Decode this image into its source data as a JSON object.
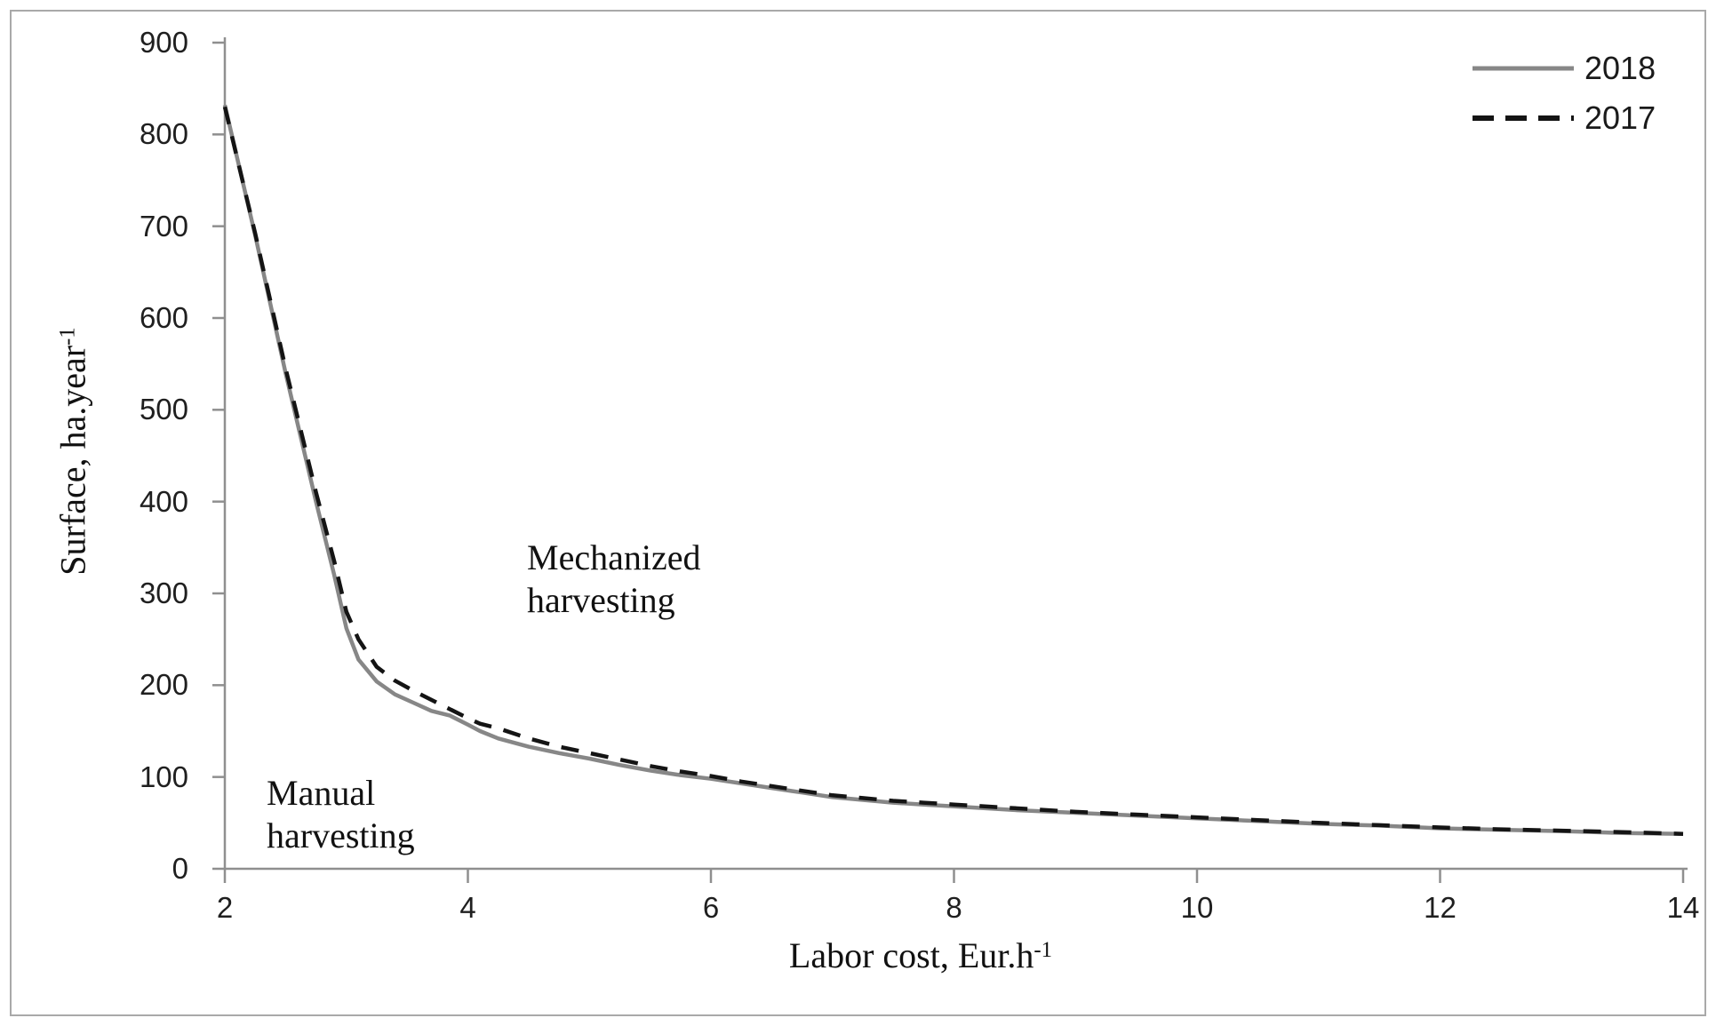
{
  "figure": {
    "border_color": "#a9a9a9",
    "background_color": "#ffffff"
  },
  "chart_data": {
    "type": "line",
    "title": "",
    "xlabel_base": "Labor cost, Eur.h",
    "xlabel_sup": "-1",
    "ylabel_base": "Surface, ha.year",
    "ylabel_sup": "-1",
    "xlim": [
      2,
      14
    ],
    "ylim": [
      0,
      900
    ],
    "xticks": [
      2,
      4,
      6,
      8,
      10,
      12,
      14
    ],
    "yticks": [
      0,
      100,
      200,
      300,
      400,
      500,
      600,
      700,
      800,
      900
    ],
    "grid": false,
    "legend_position": "top-right",
    "axis_color": "#8f8f8f",
    "tick_label_color": "#1f1f1f",
    "series": [
      {
        "name": "2018",
        "style": "solid",
        "color": "#878787",
        "points": [
          [
            2,
            832
          ],
          [
            2.25,
            690
          ],
          [
            2.5,
            540
          ],
          [
            2.75,
            400
          ],
          [
            2.9,
            320
          ],
          [
            3,
            262
          ],
          [
            3.1,
            228
          ],
          [
            3.25,
            204
          ],
          [
            3.4,
            190
          ],
          [
            3.55,
            181
          ],
          [
            3.7,
            172
          ],
          [
            3.85,
            167
          ],
          [
            4,
            157
          ],
          [
            4.1,
            150
          ],
          [
            4.25,
            142
          ],
          [
            4.5,
            133
          ],
          [
            4.75,
            126
          ],
          [
            5,
            120
          ],
          [
            5.25,
            113
          ],
          [
            5.5,
            107
          ],
          [
            5.75,
            102
          ],
          [
            6,
            98
          ],
          [
            6.25,
            93
          ],
          [
            6.5,
            88
          ],
          [
            6.75,
            83
          ],
          [
            7,
            78
          ],
          [
            7.25,
            75
          ],
          [
            7.5,
            72
          ],
          [
            7.75,
            70
          ],
          [
            8,
            68
          ],
          [
            8.5,
            64
          ],
          [
            9,
            61
          ],
          [
            9.5,
            58
          ],
          [
            10,
            55
          ],
          [
            10.5,
            52
          ],
          [
            11,
            49
          ],
          [
            11.5,
            47
          ],
          [
            12,
            44
          ],
          [
            12.5,
            42.5
          ],
          [
            13,
            41
          ],
          [
            13.5,
            39
          ],
          [
            14,
            38
          ]
        ]
      },
      {
        "name": "2017",
        "style": "dashed",
        "color": "#141414",
        "points": [
          [
            2,
            830
          ],
          [
            2.25,
            692
          ],
          [
            2.5,
            545
          ],
          [
            2.75,
            410
          ],
          [
            2.9,
            335
          ],
          [
            3,
            280
          ],
          [
            3.1,
            250
          ],
          [
            3.25,
            220
          ],
          [
            3.4,
            205
          ],
          [
            3.55,
            194
          ],
          [
            3.7,
            184
          ],
          [
            3.85,
            174
          ],
          [
            4,
            164
          ],
          [
            4.1,
            158
          ],
          [
            4.25,
            153
          ],
          [
            4.5,
            142
          ],
          [
            4.75,
            133
          ],
          [
            5,
            126
          ],
          [
            5.25,
            119
          ],
          [
            5.5,
            112
          ],
          [
            5.75,
            106
          ],
          [
            6,
            101
          ],
          [
            6.25,
            95
          ],
          [
            6.5,
            90
          ],
          [
            6.75,
            85
          ],
          [
            7,
            80
          ],
          [
            7.25,
            77
          ],
          [
            7.5,
            74
          ],
          [
            7.75,
            72
          ],
          [
            8,
            70
          ],
          [
            8.5,
            66
          ],
          [
            9,
            62
          ],
          [
            9.5,
            59
          ],
          [
            10,
            56
          ],
          [
            10.5,
            53
          ],
          [
            11,
            50
          ],
          [
            11.5,
            47.5
          ],
          [
            12,
            45
          ],
          [
            12.5,
            43
          ],
          [
            13,
            41.5
          ],
          [
            13.5,
            40
          ],
          [
            14,
            38
          ]
        ]
      }
    ],
    "annotations": [
      {
        "lines": [
          "Mechanized",
          "harvesting"
        ]
      },
      {
        "lines": [
          "Manual",
          "harvesting"
        ]
      }
    ]
  }
}
